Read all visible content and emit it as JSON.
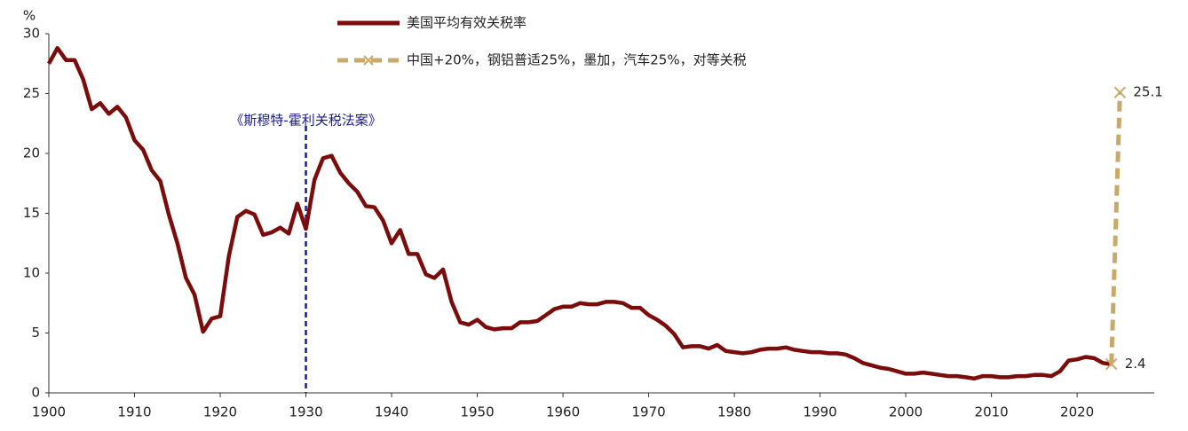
{
  "chart_data": {
    "type": "line",
    "y_label": "%",
    "xlim": [
      1900,
      2029
    ],
    "ylim": [
      0,
      30
    ],
    "xticks": [
      1900,
      1910,
      1920,
      1930,
      1940,
      1950,
      1960,
      1970,
      1980,
      1990,
      2000,
      2010,
      2020
    ],
    "yticks": [
      0,
      5,
      10,
      15,
      20,
      25,
      30
    ],
    "series": [
      {
        "name": "美国平均有效关税率",
        "color": "#7b0c0c",
        "style": "solid",
        "x": [
          1900,
          1901,
          1902,
          1903,
          1904,
          1905,
          1906,
          1907,
          1908,
          1909,
          1910,
          1911,
          1912,
          1913,
          1914,
          1915,
          1916,
          1917,
          1918,
          1919,
          1920,
          1921,
          1922,
          1923,
          1924,
          1925,
          1926,
          1927,
          1928,
          1929,
          1930,
          1931,
          1932,
          1933,
          1934,
          1935,
          1936,
          1937,
          1938,
          1939,
          1940,
          1941,
          1942,
          1943,
          1944,
          1945,
          1946,
          1947,
          1948,
          1949,
          1950,
          1951,
          1952,
          1953,
          1954,
          1955,
          1956,
          1957,
          1958,
          1959,
          1960,
          1961,
          1962,
          1963,
          1964,
          1965,
          1966,
          1967,
          1968,
          1969,
          1970,
          1971,
          1972,
          1973,
          1974,
          1975,
          1976,
          1977,
          1978,
          1979,
          1980,
          1981,
          1982,
          1983,
          1984,
          1985,
          1986,
          1987,
          1988,
          1989,
          1990,
          1991,
          1992,
          1993,
          1994,
          1995,
          1996,
          1997,
          1998,
          1999,
          2000,
          2001,
          2002,
          2003,
          2004,
          2005,
          2006,
          2007,
          2008,
          2009,
          2010,
          2011,
          2012,
          2013,
          2014,
          2015,
          2016,
          2017,
          2018,
          2019,
          2020,
          2021,
          2022,
          2023,
          2024
        ],
        "values": [
          27.5,
          28.8,
          27.8,
          27.8,
          26.2,
          23.7,
          24.2,
          23.3,
          23.9,
          23.0,
          21.1,
          20.3,
          18.6,
          17.7,
          14.9,
          12.5,
          9.6,
          8.2,
          5.1,
          6.2,
          6.4,
          11.4,
          14.7,
          15.2,
          14.9,
          13.2,
          13.4,
          13.8,
          13.3,
          15.8,
          13.7,
          17.8,
          19.6,
          19.8,
          18.4,
          17.5,
          16.8,
          15.6,
          15.5,
          14.4,
          12.5,
          13.6,
          11.6,
          11.6,
          9.9,
          9.6,
          10.3,
          7.6,
          5.9,
          5.7,
          6.1,
          5.5,
          5.3,
          5.4,
          5.4,
          5.9,
          5.9,
          6.0,
          6.5,
          7.0,
          7.2,
          7.2,
          7.5,
          7.4,
          7.4,
          7.6,
          7.6,
          7.5,
          7.1,
          7.1,
          6.5,
          6.1,
          5.6,
          4.9,
          3.8,
          3.9,
          3.9,
          3.7,
          4.0,
          3.5,
          3.4,
          3.3,
          3.4,
          3.6,
          3.7,
          3.7,
          3.8,
          3.6,
          3.5,
          3.4,
          3.4,
          3.3,
          3.3,
          3.2,
          2.9,
          2.5,
          2.3,
          2.1,
          2.0,
          1.8,
          1.6,
          1.6,
          1.7,
          1.6,
          1.5,
          1.4,
          1.4,
          1.3,
          1.2,
          1.4,
          1.4,
          1.3,
          1.3,
          1.4,
          1.4,
          1.5,
          1.5,
          1.4,
          1.8,
          2.7,
          2.8,
          3.0,
          2.9,
          2.5,
          2.4
        ]
      },
      {
        "name": "中国+20%，钢铝普适25%，墨加，汽车25%，对等关税",
        "color": "#c9a96a",
        "style": "dashed",
        "marker": "x",
        "x": [
          2024,
          2025
        ],
        "values": [
          2.4,
          25.1
        ]
      }
    ],
    "annotations": [
      {
        "text": "《斯穆特-霍利关税法案》",
        "x": 1930,
        "color": "#1a1a8c"
      }
    ]
  }
}
